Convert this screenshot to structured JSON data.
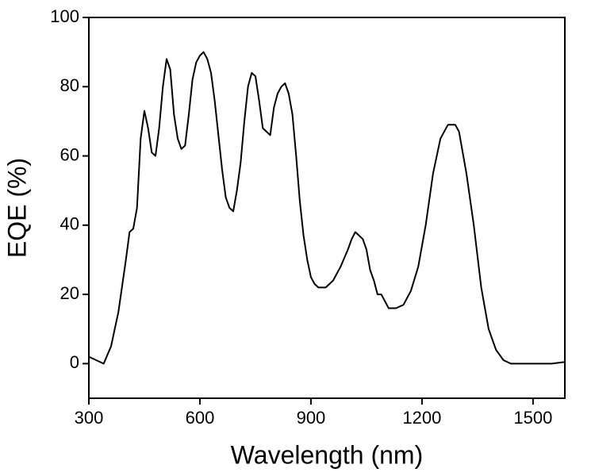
{
  "chart_data": {
    "type": "line",
    "x_label": "Wavelength (nm)",
    "y_label": "EQE (%)",
    "xlim": [
      300,
      1586
    ],
    "ylim": [
      -10,
      100
    ],
    "xticks": [
      300,
      600,
      900,
      1200,
      1500
    ],
    "yticks": [
      0,
      20,
      40,
      60,
      80,
      100
    ],
    "series": [
      {
        "color": "#000000",
        "x": [
          300,
          320,
          340,
          360,
          380,
          400,
          410,
          420,
          430,
          440,
          450,
          460,
          470,
          480,
          490,
          500,
          510,
          520,
          530,
          540,
          550,
          560,
          570,
          580,
          590,
          600,
          610,
          620,
          630,
          640,
          650,
          660,
          670,
          680,
          690,
          700,
          710,
          720,
          730,
          740,
          750,
          760,
          770,
          780,
          790,
          800,
          810,
          820,
          830,
          840,
          850,
          860,
          870,
          880,
          890,
          900,
          910,
          920,
          940,
          960,
          980,
          1000,
          1010,
          1020,
          1030,
          1040,
          1050,
          1060,
          1070,
          1080,
          1090,
          1100,
          1110,
          1130,
          1150,
          1170,
          1190,
          1210,
          1230,
          1250,
          1270,
          1290,
          1300,
          1320,
          1340,
          1360,
          1380,
          1400,
          1420,
          1440,
          1500,
          1550,
          1586
        ],
        "values": [
          2,
          1,
          0,
          5,
          15,
          30,
          38,
          39,
          45,
          65,
          73,
          68,
          61,
          60,
          68,
          80,
          88,
          85,
          72,
          65,
          62,
          63,
          72,
          82,
          87,
          89,
          90,
          88,
          84,
          76,
          66,
          56,
          48,
          45,
          44,
          50,
          58,
          70,
          80,
          84,
          83,
          76,
          68,
          67,
          66,
          74,
          78,
          80,
          81,
          78,
          72,
          60,
          47,
          37,
          30,
          25,
          23,
          22,
          22,
          24,
          28,
          33,
          36,
          38,
          37,
          36,
          33,
          27,
          24,
          20,
          20,
          18,
          16,
          16,
          17,
          21,
          28,
          40,
          55,
          65,
          69,
          69,
          67,
          55,
          40,
          22,
          10,
          4,
          1,
          0,
          0,
          0,
          0.5
        ]
      }
    ]
  }
}
